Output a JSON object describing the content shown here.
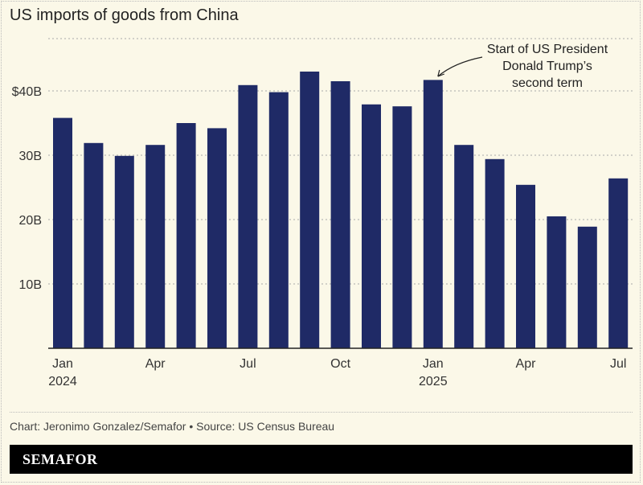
{
  "title": "US imports of goods from China",
  "credit": "Chart: Jeronimo Gonzalez/Semafor • Source: US Census Bureau",
  "brand": "SEMAFOR",
  "chart_data": {
    "type": "bar",
    "title": "US imports of goods from China",
    "categories": [
      "Jan 2024",
      "Feb 2024",
      "Mar 2024",
      "Apr 2024",
      "May 2024",
      "Jun 2024",
      "Jul 2024",
      "Aug 2024",
      "Sep 2024",
      "Oct 2024",
      "Nov 2024",
      "Dec 2024",
      "Jan 2025",
      "Feb 2025",
      "Mar 2025",
      "Apr 2025",
      "May 2025",
      "Jun 2025",
      "Jul 2025"
    ],
    "values": [
      35.8,
      31.9,
      29.9,
      31.6,
      35.0,
      34.2,
      40.9,
      39.8,
      43.0,
      41.5,
      37.9,
      37.6,
      41.7,
      31.6,
      29.4,
      25.4,
      20.5,
      18.9,
      26.4
    ],
    "units": "billion USD",
    "ylim": [
      0,
      50
    ],
    "yticks": [
      {
        "value": 10,
        "label": "10B"
      },
      {
        "value": 20,
        "label": "20B"
      },
      {
        "value": 30,
        "label": "30B"
      },
      {
        "value": 40,
        "label": "$40B"
      }
    ],
    "xticks": [
      {
        "index": 0,
        "label": "Jan",
        "sub": "2024"
      },
      {
        "index": 3,
        "label": "Apr",
        "sub": ""
      },
      {
        "index": 6,
        "label": "Jul",
        "sub": ""
      },
      {
        "index": 9,
        "label": "Oct",
        "sub": ""
      },
      {
        "index": 12,
        "label": "Jan",
        "sub": "2025"
      },
      {
        "index": 15,
        "label": "Apr",
        "sub": ""
      },
      {
        "index": 18,
        "label": "Jul",
        "sub": ""
      }
    ],
    "grid": true,
    "bar_color": "#1f2a66",
    "annotation": {
      "index": 12,
      "lines": [
        "Start of US President",
        "Donald Trump’s",
        "second term"
      ]
    }
  }
}
